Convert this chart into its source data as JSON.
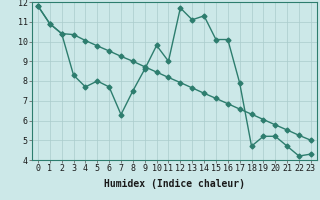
{
  "xlabel": "Humidex (Indice chaleur)",
  "bg_color": "#cce8e8",
  "line_color": "#2d7d6e",
  "grid_color": "#aacccc",
  "xlim": [
    -0.5,
    23.5
  ],
  "ylim": [
    4,
    12
  ],
  "xticks": [
    0,
    1,
    2,
    3,
    4,
    5,
    6,
    7,
    8,
    9,
    10,
    11,
    12,
    13,
    14,
    15,
    16,
    17,
    18,
    19,
    20,
    21,
    22,
    23
  ],
  "yticks": [
    4,
    5,
    6,
    7,
    8,
    9,
    10,
    11,
    12
  ],
  "line1_x": [
    0,
    1,
    2,
    3,
    4,
    5,
    6,
    7,
    8,
    9,
    10,
    11,
    12,
    13,
    14,
    15,
    16,
    17,
    18,
    19,
    20,
    21,
    22,
    23
  ],
  "line1_y": [
    11.8,
    10.9,
    10.4,
    10.35,
    10.05,
    9.78,
    9.52,
    9.25,
    9.0,
    8.72,
    8.45,
    8.18,
    7.92,
    7.65,
    7.38,
    7.12,
    6.85,
    6.58,
    6.32,
    6.05,
    5.78,
    5.52,
    5.25,
    5.0
  ],
  "line2_x": [
    0,
    1,
    2,
    3,
    4,
    5,
    6,
    7,
    8,
    9,
    10,
    11,
    12,
    13,
    14,
    15,
    16,
    17,
    18,
    19,
    20,
    21,
    22,
    23
  ],
  "line2_y": [
    11.8,
    10.9,
    10.4,
    8.3,
    7.7,
    8.0,
    7.7,
    6.3,
    7.5,
    8.6,
    9.8,
    9.0,
    11.7,
    11.1,
    11.3,
    10.1,
    10.1,
    7.9,
    4.7,
    5.2,
    5.2,
    4.7,
    4.2,
    4.3
  ],
  "marker": "D",
  "markersize": 2.5,
  "linewidth": 1.0,
  "fontsize_label": 7,
  "fontsize_tick": 6
}
